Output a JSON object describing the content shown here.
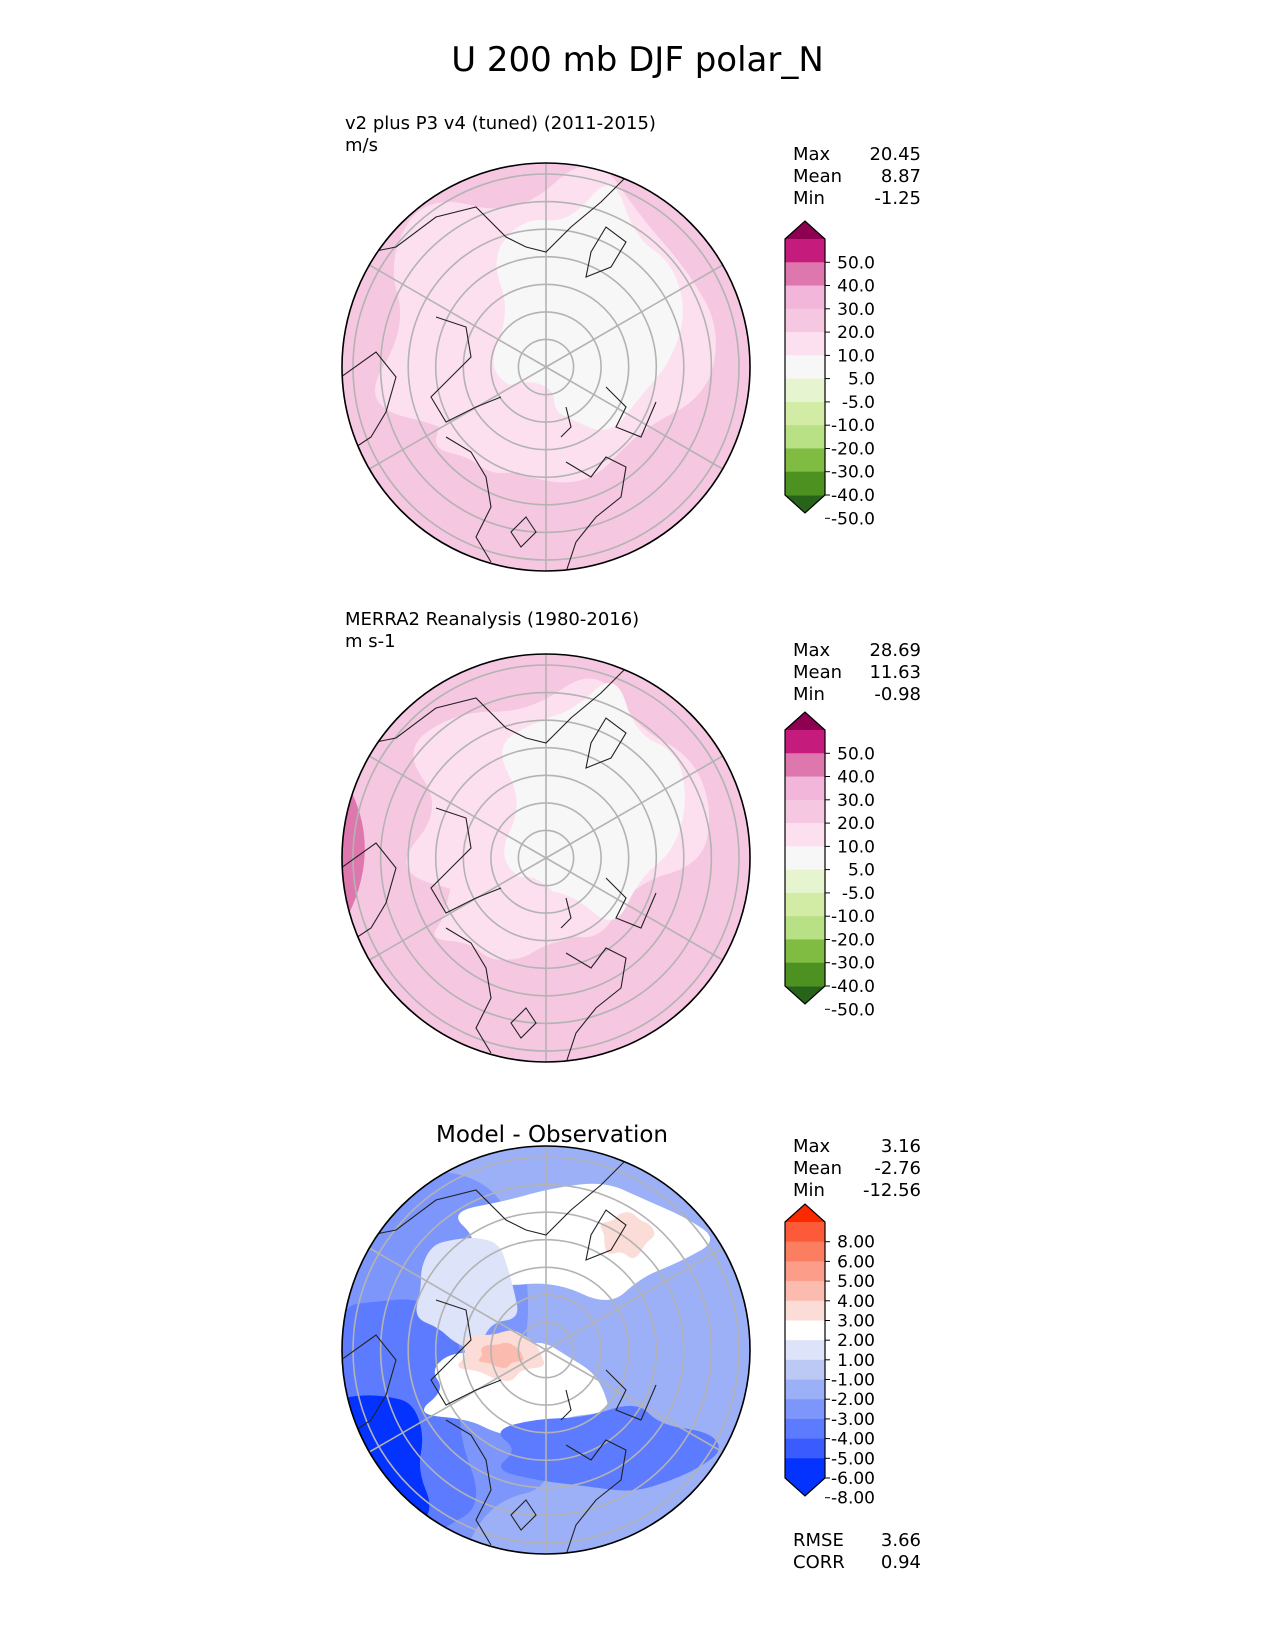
{
  "title": "U 200 mb DJF polar_N",
  "colors": {
    "seq_bins": [
      "#276419",
      "#4d9221",
      "#7fbc41",
      "#b8e186",
      "#d3eca5",
      "#e6f5d0",
      "#f7f7f7",
      "#fde0ef",
      "#f6c7e0",
      "#f1b6da",
      "#de77ae",
      "#c51b7d",
      "#8e0152"
    ],
    "diff_bins": [
      "#0432ff",
      "#3a5cff",
      "#5c7bff",
      "#7c96fb",
      "#9cb0f7",
      "#bcc9f5",
      "#dde3f8",
      "#ffffff",
      "#fbdcd6",
      "#fbbcaf",
      "#fb9d88",
      "#fb7e60",
      "#fc5a39",
      "#fc2800"
    ]
  },
  "chart_data": [
    {
      "type": "heatmap",
      "projection": "north-polar-stereographic",
      "title": "v2 plus P3 v4 (tuned) (2011-2015)",
      "units": "m/s",
      "stats": [
        {
          "label": "Max",
          "value": "20.45"
        },
        {
          "label": "Mean",
          "value": "8.87"
        },
        {
          "label": "Min",
          "value": "-1.25"
        }
      ],
      "colorbar": {
        "levels": [
          -50,
          -40,
          -30,
          -20,
          -10,
          -5,
          5,
          10,
          20,
          30,
          40,
          50
        ],
        "tick_labels": [
          "50.0",
          "40.0",
          "30.0",
          "20.0",
          "10.0",
          "5.0",
          "-5.0",
          "-10.0",
          "-20.0",
          "-30.0",
          "-40.0",
          "-50.0"
        ],
        "extend": "both"
      }
    },
    {
      "type": "heatmap",
      "projection": "north-polar-stereographic",
      "title": "MERRA2 Reanalysis (1980-2016)",
      "units": "m s-1",
      "stats": [
        {
          "label": "Max",
          "value": "28.69"
        },
        {
          "label": "Mean",
          "value": "11.63"
        },
        {
          "label": "Min",
          "value": "-0.98"
        }
      ],
      "colorbar": {
        "levels": [
          -50,
          -40,
          -30,
          -20,
          -10,
          -5,
          5,
          10,
          20,
          30,
          40,
          50
        ],
        "tick_labels": [
          "50.0",
          "40.0",
          "30.0",
          "20.0",
          "10.0",
          "5.0",
          "-5.0",
          "-10.0",
          "-20.0",
          "-30.0",
          "-40.0",
          "-50.0"
        ],
        "extend": "both"
      }
    },
    {
      "type": "heatmap",
      "projection": "north-polar-stereographic",
      "title": "Model - Observation",
      "stats": [
        {
          "label": "Max",
          "value": "3.16"
        },
        {
          "label": "Mean",
          "value": "-2.76"
        },
        {
          "label": "Min",
          "value": "-12.56"
        }
      ],
      "colorbar": {
        "levels": [
          -8,
          -6,
          -5,
          -4,
          -3,
          -2,
          -1,
          1,
          2,
          3,
          4,
          5,
          6,
          8
        ],
        "tick_labels": [
          "8.00",
          "6.00",
          "5.00",
          "4.00",
          "3.00",
          "2.00",
          "1.00",
          "-1.00",
          "-2.00",
          "-3.00",
          "-4.00",
          "-5.00",
          "-6.00",
          "-8.00"
        ],
        "extend": "both"
      },
      "metrics": [
        {
          "label": "RMSE",
          "value": "3.66"
        },
        {
          "label": "CORR",
          "value": "0.94"
        }
      ]
    }
  ]
}
